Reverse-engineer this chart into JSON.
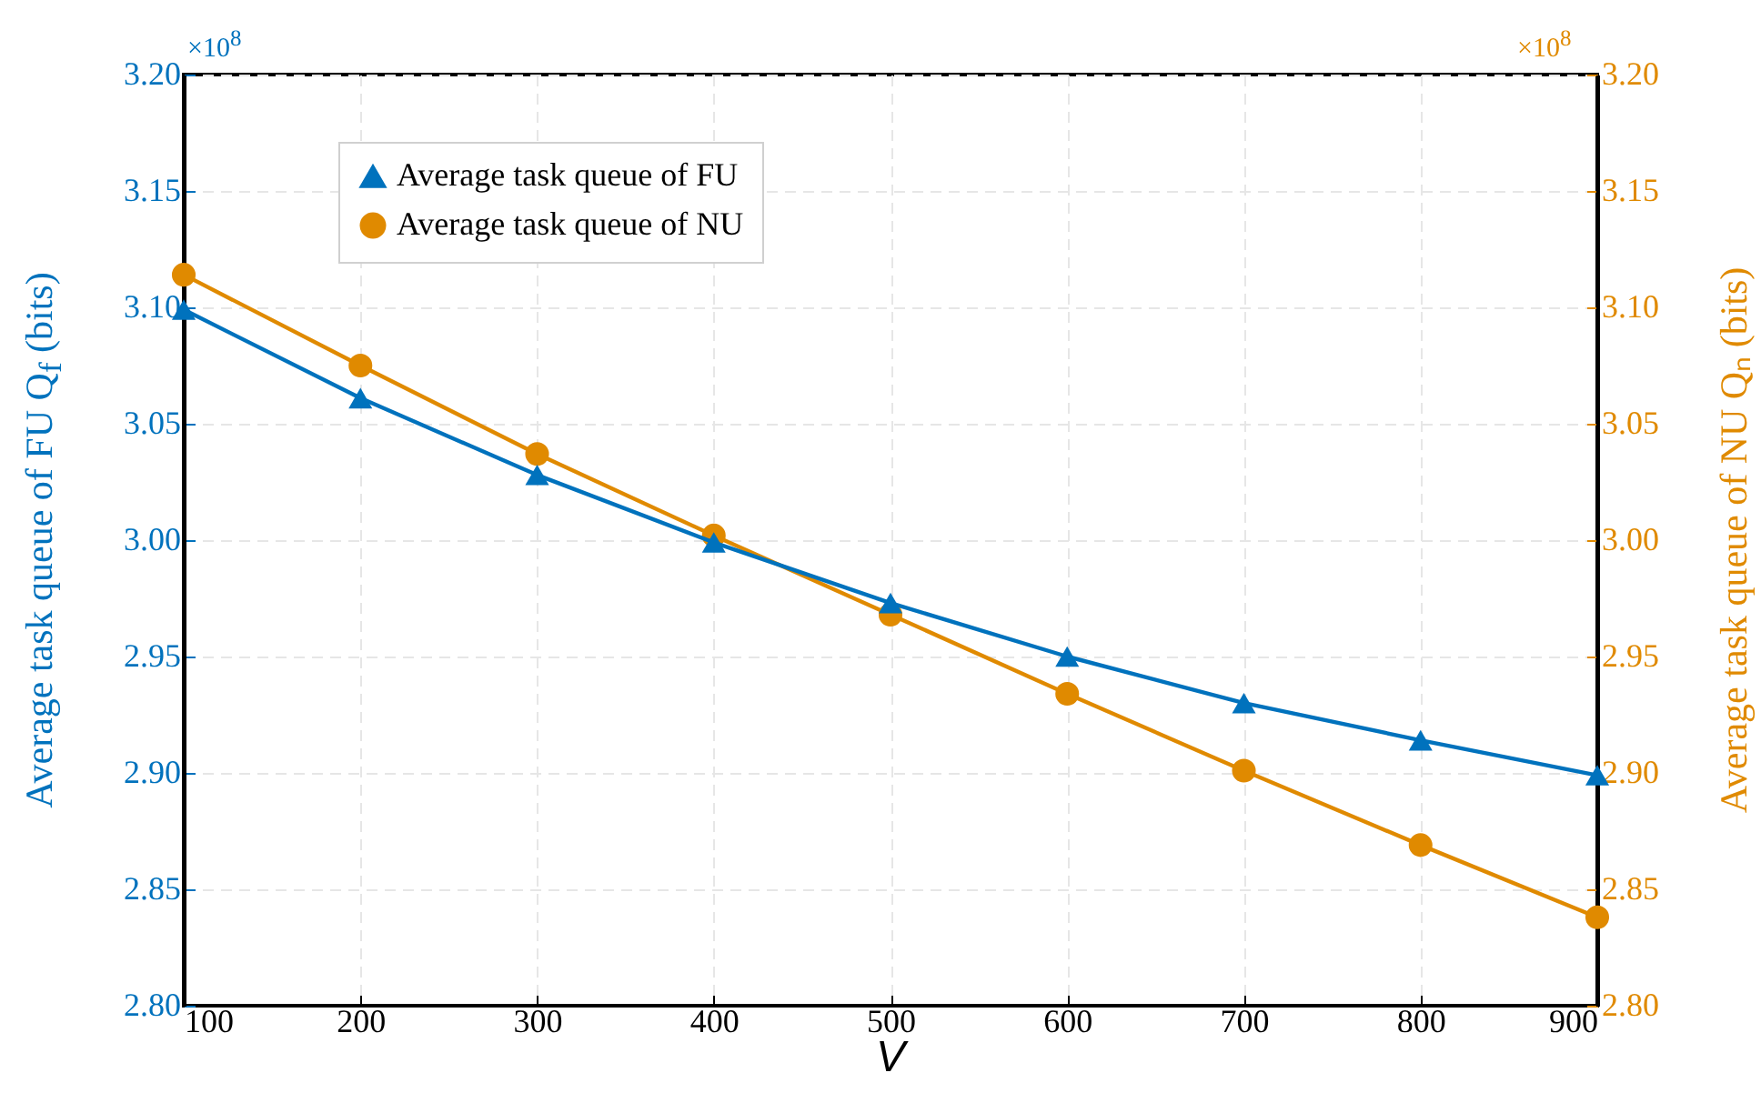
{
  "chart_data": {
    "type": "line",
    "xlabel": "V",
    "ylabel": "Average task queue of FU Q$_{f}$ (bits)",
    "y2label": "Average task queue of NU Qₙ (bits)",
    "x": [
      100,
      200,
      300,
      400,
      500,
      600,
      700,
      800,
      900
    ],
    "series": [
      {
        "name": "Average task queue of FU",
        "color": "#0072bd",
        "marker": "triangle",
        "values": [
          3.099,
          3.061,
          3.028,
          2.999,
          2.973,
          2.95,
          2.93,
          2.914,
          2.899
        ]
      },
      {
        "name": "Average task queue of NU",
        "color": "#e08a00",
        "marker": "circle",
        "axis": "y2",
        "values": [
          3.114,
          3.075,
          3.037,
          3.002,
          2.968,
          2.934,
          2.901,
          2.869,
          2.838
        ]
      }
    ],
    "xlim": [
      100,
      900
    ],
    "xticks": [
      100,
      200,
      300,
      400,
      500,
      600,
      700,
      800,
      900
    ],
    "ylim": [
      2.8,
      3.2
    ],
    "yticks": [
      {
        "value": 2.8,
        "label": "2.80"
      },
      {
        "value": 2.85,
        "label": "2.85"
      },
      {
        "value": 2.9,
        "label": "2.90"
      },
      {
        "value": 2.95,
        "label": "2.95"
      },
      {
        "value": 3.0,
        "label": "3.00"
      },
      {
        "value": 3.05,
        "label": "3.05"
      },
      {
        "value": 3.1,
        "label": "3.10"
      },
      {
        "value": 3.15,
        "label": "3.15"
      },
      {
        "value": 3.2,
        "label": "3.20"
      }
    ],
    "y2lim": [
      2.8,
      3.2
    ],
    "y2ticks": [
      {
        "value": 2.8,
        "label": "2.80"
      },
      {
        "value": 2.85,
        "label": "2.85"
      },
      {
        "value": 2.9,
        "label": "2.90"
      },
      {
        "value": 2.95,
        "label": "2.95"
      },
      {
        "value": 3.0,
        "label": "3.00"
      },
      {
        "value": 3.05,
        "label": "3.05"
      },
      {
        "value": 3.1,
        "label": "3.10"
      },
      {
        "value": 3.15,
        "label": "3.15"
      },
      {
        "value": 3.2,
        "label": "3.20"
      }
    ],
    "annotations": [
      "×10$^{8}$",
      "×10$^{8}$"
    ],
    "grid": true,
    "legend": "top left"
  }
}
